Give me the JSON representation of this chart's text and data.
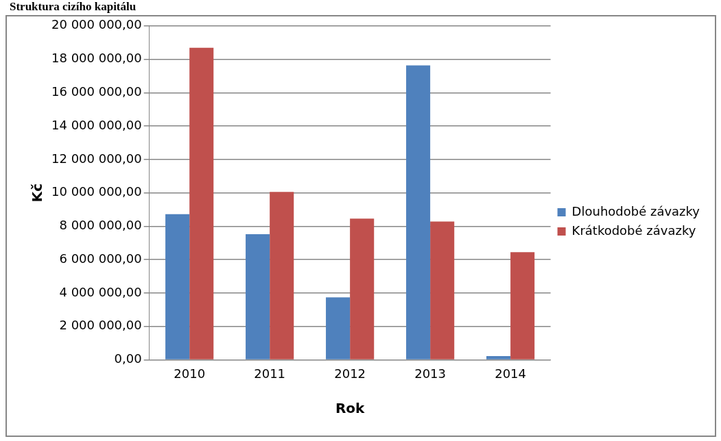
{
  "chart_data": {
    "type": "bar",
    "title": "Struktura cizího kapitálu",
    "xlabel": "Rok",
    "ylabel": "Kč",
    "categories": [
      "2010",
      "2011",
      "2012",
      "2013",
      "2014"
    ],
    "series": [
      {
        "name": "Dlouhodobé závazky",
        "color": "#4f81bd",
        "values": [
          8720000,
          7520000,
          3740000,
          17630000,
          220000
        ]
      },
      {
        "name": "Krátkodobé závazky",
        "color": "#c0504d",
        "values": [
          18690000,
          10060000,
          8460000,
          8280000,
          6450000
        ]
      }
    ],
    "ylim": [
      0,
      20000000
    ],
    "yticks": [
      {
        "value": 0,
        "label": "0,00"
      },
      {
        "value": 2000000,
        "label": "2 000 000,00"
      },
      {
        "value": 4000000,
        "label": "4 000 000,00"
      },
      {
        "value": 6000000,
        "label": "6 000 000,00"
      },
      {
        "value": 8000000,
        "label": "8 000 000,00"
      },
      {
        "value": 10000000,
        "label": "10 000 000,00"
      },
      {
        "value": 12000000,
        "label": "12 000 000,00"
      },
      {
        "value": 14000000,
        "label": "14 000 000,00"
      },
      {
        "value": 16000000,
        "label": "16 000 000,00"
      },
      {
        "value": 18000000,
        "label": "18 000 000,00"
      },
      {
        "value": 20000000,
        "label": "20 000 000,00"
      }
    ],
    "grid": "y",
    "legend": "right"
  }
}
